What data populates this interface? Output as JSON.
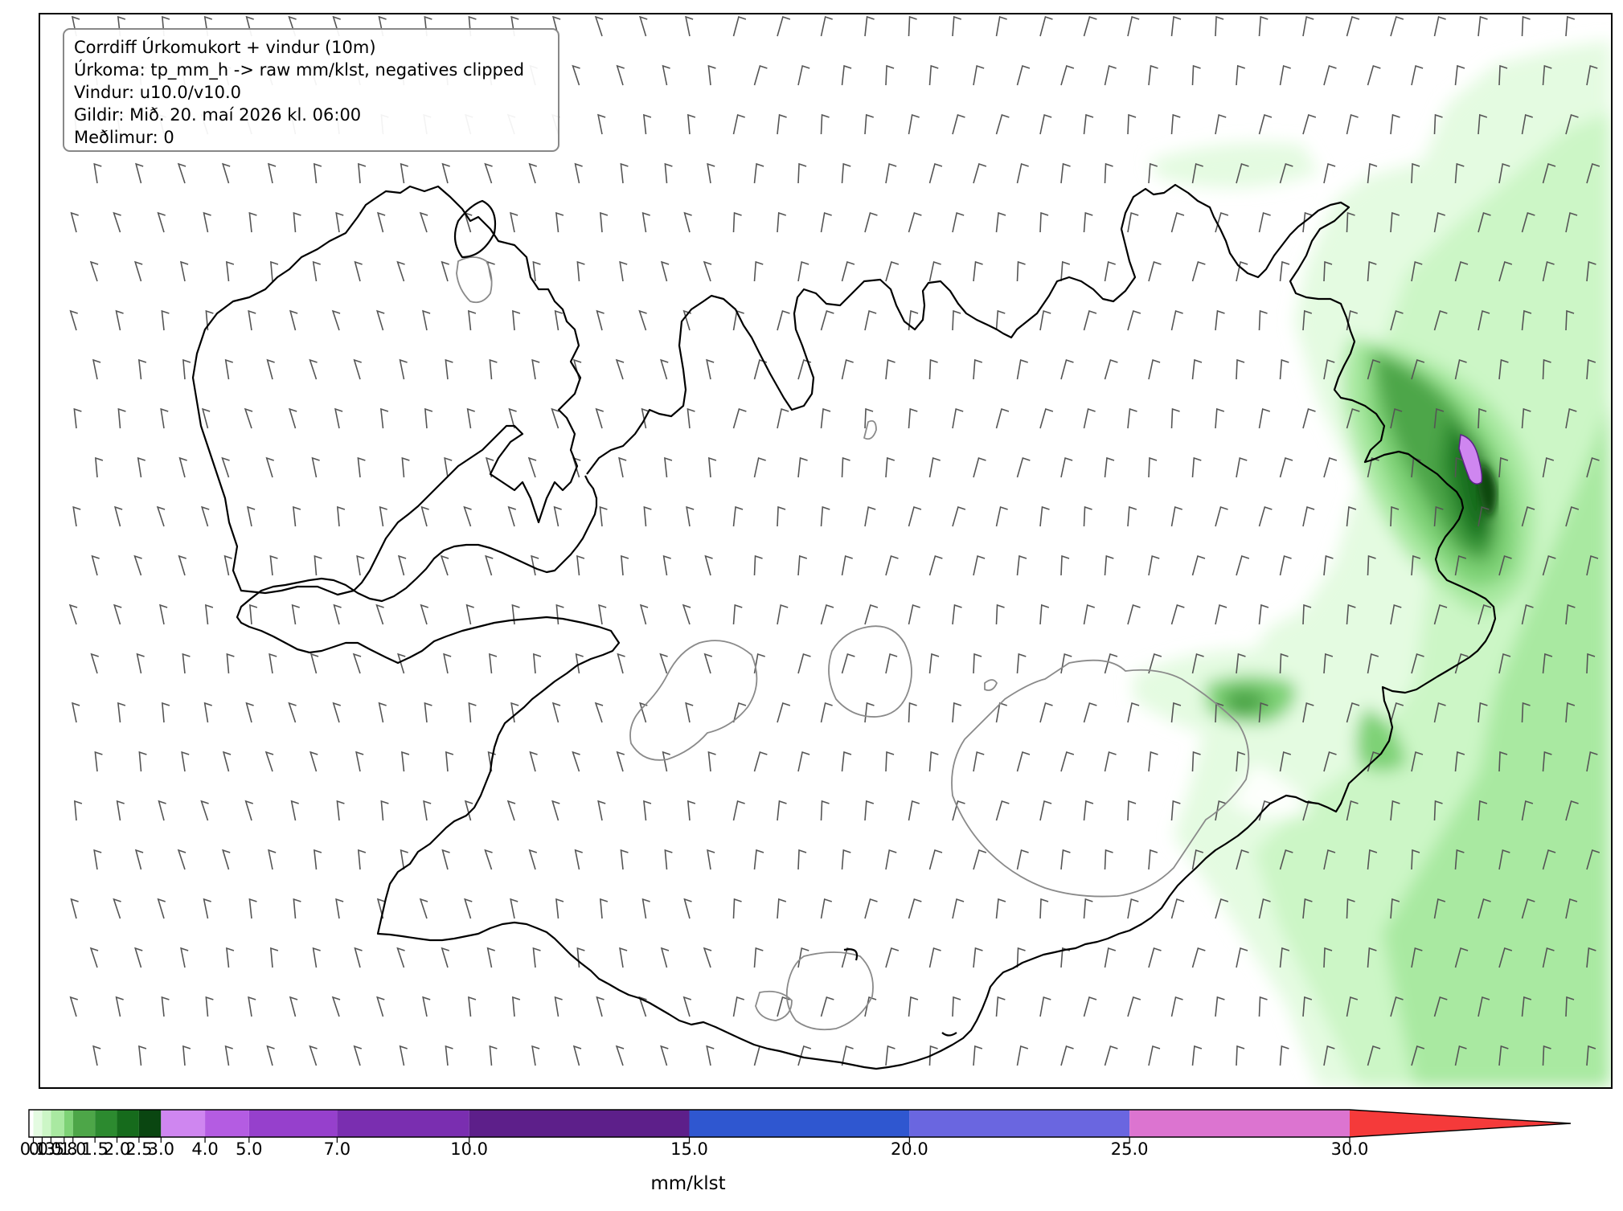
{
  "info": {
    "title": "Corrdiff Úrkomukort + vindur (10m)",
    "precip": "Úrkoma: tp_mm_h -> raw mm/klst, negatives clipped",
    "wind": "Vindur: u10.0/v10.0",
    "valid": "Gildir: Mið. 20. maí 2026 kl. 06:00",
    "member": "Meðlimur: 0"
  },
  "colorbar": {
    "unit": "mm/klst",
    "ticks": [
      "0.1",
      "0.3",
      "0.5",
      "0.8",
      "1.0",
      "1.5",
      "2.0",
      "2.5",
      "3.0",
      "4.0",
      "5.0",
      "7.0",
      "10.0",
      "15.0",
      "20.0",
      "25.0",
      "30.0"
    ],
    "bins": [
      {
        "from": 0.1,
        "to": 0.3,
        "color": "#e4fbe1"
      },
      {
        "from": 0.3,
        "to": 0.5,
        "color": "#ccf6c6"
      },
      {
        "from": 0.5,
        "to": 0.8,
        "color": "#a9e9a1"
      },
      {
        "from": 0.8,
        "to": 1.0,
        "color": "#7ed276"
      },
      {
        "from": 1.0,
        "to": 1.5,
        "color": "#4da648"
      },
      {
        "from": 1.5,
        "to": 2.0,
        "color": "#2c8a2f"
      },
      {
        "from": 2.0,
        "to": 2.5,
        "color": "#166b1c"
      },
      {
        "from": 2.5,
        "to": 3.0,
        "color": "#0a4611"
      },
      {
        "from": 3.0,
        "to": 4.0,
        "color": "#cf86f0"
      },
      {
        "from": 4.0,
        "to": 5.0,
        "color": "#b45ce2"
      },
      {
        "from": 5.0,
        "to": 7.0,
        "color": "#9640cc"
      },
      {
        "from": 7.0,
        "to": 10.0,
        "color": "#7a2eb0"
      },
      {
        "from": 10.0,
        "to": 15.0,
        "color": "#5d1f8a"
      },
      {
        "from": 15.0,
        "to": 20.0,
        "color": "#2f57d0"
      },
      {
        "from": 20.0,
        "to": 25.0,
        "color": "#6a66e0"
      },
      {
        "from": 25.0,
        "to": 30.0,
        "color": "#dc74d0"
      }
    ],
    "over_color": "#f53a3a"
  },
  "legend_colors": {
    "glacier_outline": "#8a8a8a",
    "coastline": "#000000",
    "wind_barbs": "#555555"
  }
}
